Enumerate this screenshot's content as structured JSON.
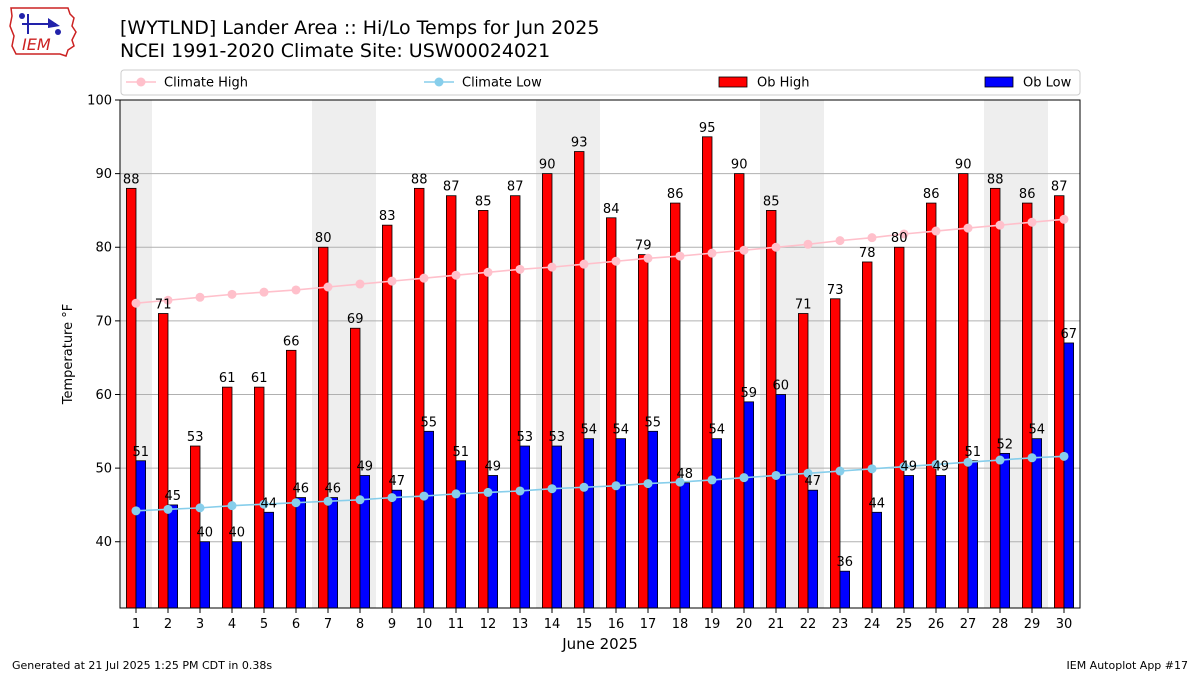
{
  "header": {
    "title_line1": "[WYTLND] Lander Area :: Hi/Lo Temps for Jun 2025",
    "title_line2": "NCEI 1991-2020 Climate Site: USW00024021",
    "logo_text": "IEM"
  },
  "footer": {
    "generated": "Generated at 21 Jul 2025 1:25 PM CDT in 0.38s",
    "app": "IEM Autoplot App #17"
  },
  "colors": {
    "ob_high": "#ff0000",
    "ob_low": "#0000ff",
    "climate_high": "#ffc0cb",
    "climate_low": "#87ceeb",
    "weekend_shade": "#eeeeee",
    "grid": "#b0b0b0"
  },
  "chart_data": {
    "type": "bar",
    "xlabel": "June 2025",
    "ylabel": "Temperature °F",
    "ylim": [
      31,
      100
    ],
    "yticks": [
      40,
      50,
      60,
      70,
      80,
      90,
      100
    ],
    "grid": true,
    "legend_placement": "top",
    "categories": [
      "1",
      "2",
      "3",
      "4",
      "5",
      "6",
      "7",
      "8",
      "9",
      "10",
      "11",
      "12",
      "13",
      "14",
      "15",
      "16",
      "17",
      "18",
      "19",
      "20",
      "21",
      "22",
      "23",
      "24",
      "25",
      "26",
      "27",
      "28",
      "29",
      "30"
    ],
    "shaded_days": [
      1,
      7,
      8,
      14,
      15,
      21,
      22,
      28,
      29
    ],
    "series": [
      {
        "name": "Climate High",
        "kind": "line",
        "values": [
          72.4,
          72.8,
          73.2,
          73.6,
          73.9,
          74.2,
          74.6,
          75.0,
          75.4,
          75.8,
          76.2,
          76.6,
          77.0,
          77.3,
          77.7,
          78.1,
          78.5,
          78.8,
          79.2,
          79.6,
          80.0,
          80.4,
          80.9,
          81.3,
          81.8,
          82.2,
          82.6,
          83.0,
          83.4,
          83.8
        ]
      },
      {
        "name": "Climate Low",
        "kind": "line",
        "values": [
          44.2,
          44.4,
          44.6,
          44.9,
          45.1,
          45.3,
          45.5,
          45.7,
          46.0,
          46.2,
          46.5,
          46.7,
          46.9,
          47.2,
          47.4,
          47.6,
          47.9,
          48.1,
          48.4,
          48.7,
          49.0,
          49.3,
          49.6,
          49.9,
          50.2,
          50.5,
          50.8,
          51.1,
          51.4,
          51.6
        ]
      },
      {
        "name": "Ob High",
        "kind": "bar",
        "values": [
          88,
          71,
          53,
          61,
          61,
          66,
          80,
          69,
          83,
          88,
          87,
          85,
          87,
          90,
          93,
          84,
          79,
          86,
          95,
          90,
          85,
          71,
          73,
          78,
          80,
          86,
          90,
          88,
          86,
          87
        ]
      },
      {
        "name": "Ob Low",
        "kind": "bar",
        "values": [
          51,
          45,
          40,
          40,
          44,
          46,
          46,
          49,
          47,
          55,
          51,
          49,
          53,
          53,
          54,
          54,
          55,
          48,
          54,
          59,
          60,
          47,
          36,
          44,
          49,
          49,
          51,
          52,
          54,
          67
        ]
      }
    ]
  }
}
